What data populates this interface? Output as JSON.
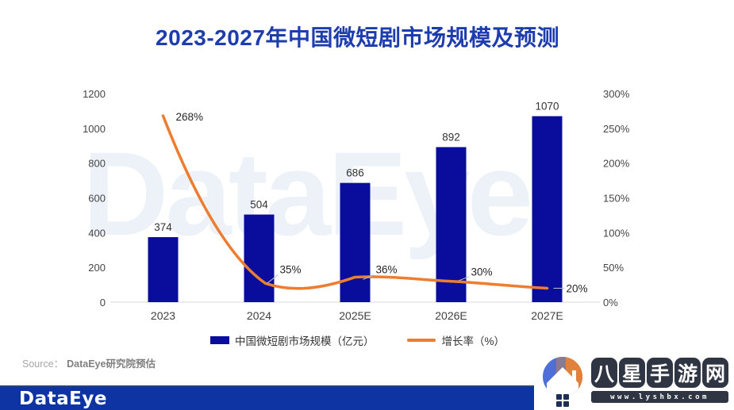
{
  "title": "2023-2027年中国微短剧市场规模及预测",
  "watermark_text": "DataEye",
  "chart_data": {
    "type": "bar",
    "subtype": "bar-line combo, dual axis",
    "title": "2023-2027年中国微短剧市场规模及预测",
    "categories": [
      "2023",
      "2024",
      "2025E",
      "2026E",
      "2027E"
    ],
    "series": [
      {
        "name": "中国微短剧市场规模（亿元）",
        "type": "bar",
        "axis": "left",
        "values": [
          374,
          504,
          686,
          892,
          1070
        ],
        "color": "#0a0c9b"
      },
      {
        "name": "增长率（%）",
        "type": "line",
        "axis": "right",
        "values": [
          268,
          35,
          36,
          30,
          20
        ],
        "color": "#ed7d31"
      }
    ],
    "bar_labels": [
      "374",
      "504",
      "686",
      "892",
      "1070"
    ],
    "line_labels": [
      "268%",
      "35%",
      "36%",
      "30%",
      "20%"
    ],
    "left_axis": {
      "min": 0,
      "max": 1200,
      "step": 200,
      "ticks": [
        "0",
        "200",
        "400",
        "600",
        "800",
        "1000",
        "1200"
      ]
    },
    "right_axis": {
      "min": 0,
      "max": 300,
      "step": 50,
      "ticks": [
        "0%",
        "50%",
        "100%",
        "150%",
        "200%",
        "250%",
        "300%"
      ]
    },
    "grid": false,
    "legend_position": "bottom"
  },
  "legend": {
    "bar_label": "中国微短剧市场规模（亿元）",
    "line_label": "增长率（%）"
  },
  "source": {
    "prefix": "Source：",
    "text": "DataEye研究院预估"
  },
  "footer": {
    "logo_text": "DataEye"
  },
  "site_watermark": {
    "site_name_chars": [
      "八",
      "星",
      "手",
      "游",
      "网"
    ],
    "url": "www.lyshbx.com"
  },
  "colors": {
    "title_blue": "#1d3cae",
    "bar_navy": "#0a0c9b",
    "line_orange": "#ed7d31",
    "footer_blue": "#0e34a3",
    "stamp_dark": "#2f3542",
    "watermark_light_blue": "#edf2f9"
  }
}
